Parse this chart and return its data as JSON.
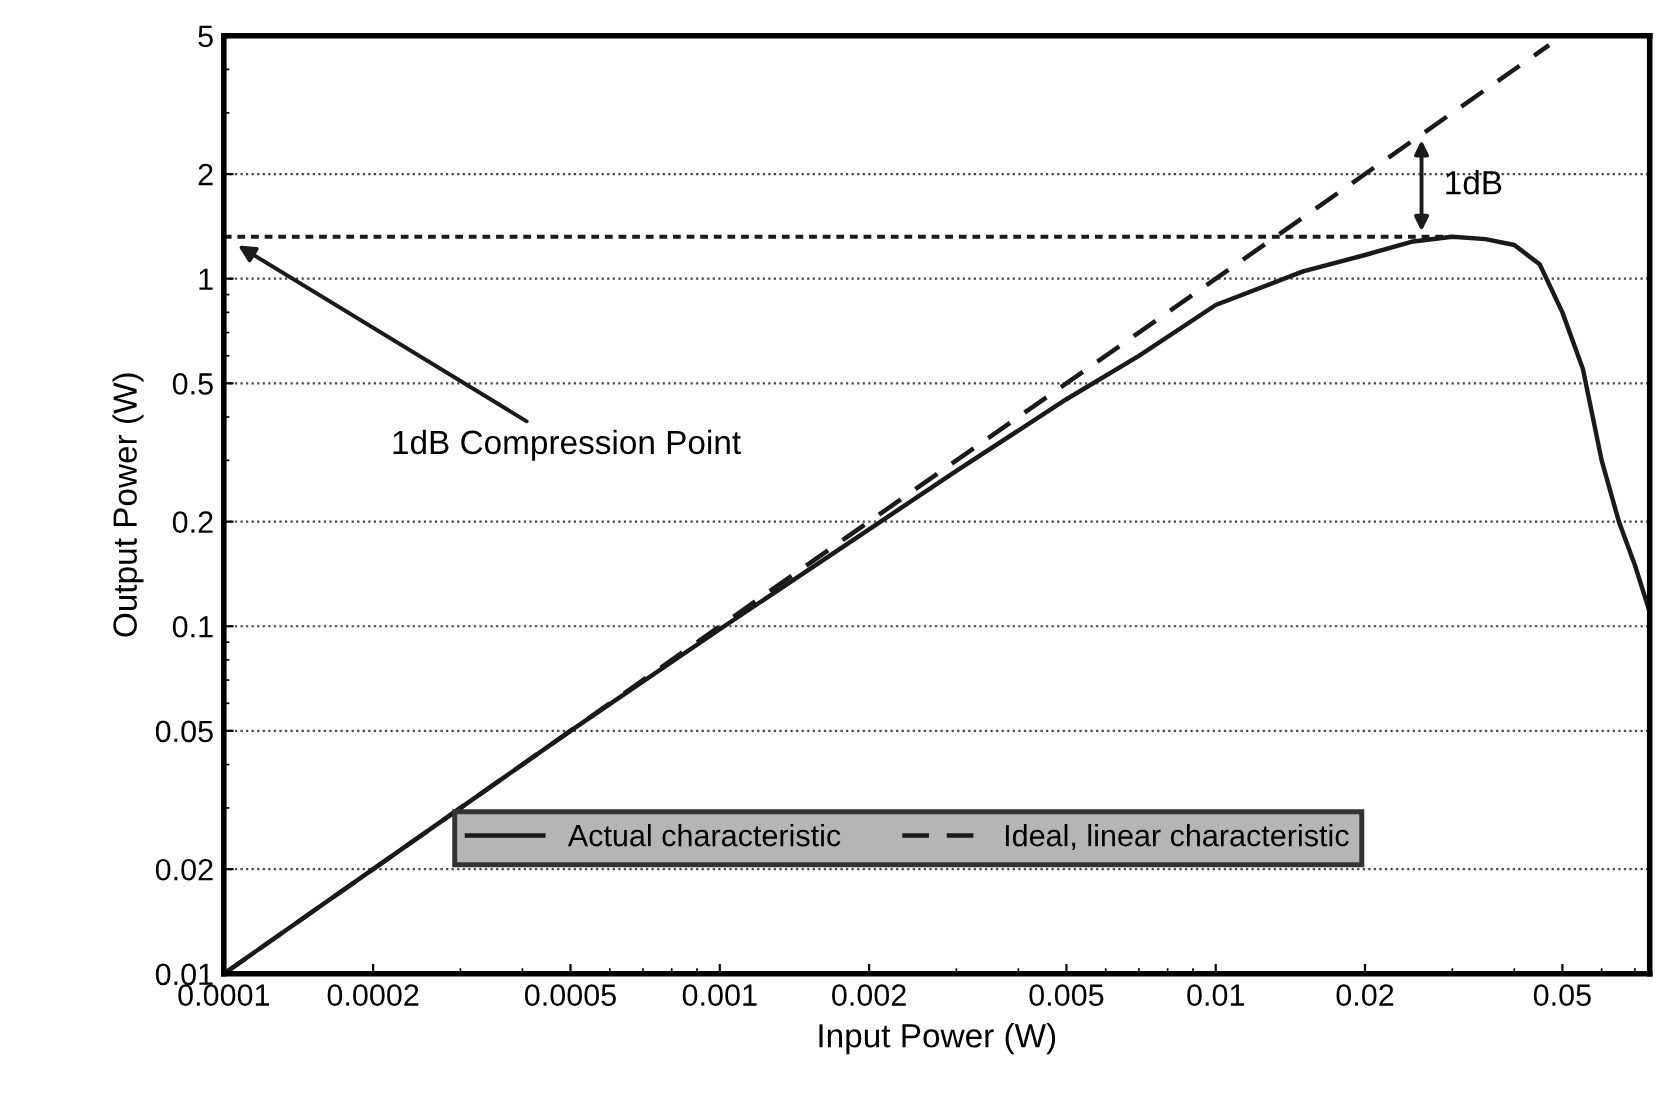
{
  "chart_data": {
    "type": "line",
    "xlabel": "Input Power (W)",
    "ylabel": "Output Power (W)",
    "log": "xy",
    "grid": "y",
    "legend": "bottom",
    "xlim": [
      0.0001,
      0.075
    ],
    "ylim": [
      0.01,
      5
    ],
    "xticks": [
      0.0001,
      0.0002,
      0.0005,
      0.001,
      0.002,
      0.005,
      0.01,
      0.02,
      0.05
    ],
    "yticks": [
      0.01,
      0.02,
      0.05,
      0.1,
      0.2,
      0.5,
      1,
      2,
      5
    ],
    "series": [
      {
        "name": "Actual characteristic",
        "color": "#1a1a1a",
        "line_style": "solid",
        "x": [
          0.0001,
          0.0002,
          0.0005,
          0.001,
          0.002,
          0.003,
          0.005,
          0.007,
          0.01,
          0.015,
          0.02,
          0.025,
          0.03,
          0.035,
          0.04,
          0.045,
          0.05,
          0.055,
          0.06,
          0.065,
          0.07,
          0.075
        ],
        "values": [
          0.01,
          0.02,
          0.05,
          0.098,
          0.19,
          0.28,
          0.45,
          0.6,
          0.84,
          1.05,
          1.17,
          1.28,
          1.32,
          1.3,
          1.25,
          1.1,
          0.8,
          0.55,
          0.3,
          0.2,
          0.15,
          0.11
        ]
      },
      {
        "name": "Ideal, linear characteristic",
        "color": "#1a1a1a",
        "line_style": "dashed",
        "x": [
          0.0001,
          0.047
        ],
        "values": [
          0.01,
          4.7
        ]
      }
    ],
    "ref_lines": [
      {
        "axis": "y",
        "value": 1.32,
        "line_style": "dotted",
        "color": "#1a1a1a"
      }
    ],
    "annotations": [
      "1dB Compression Point",
      {
        "text": "1dB",
        "x": 0.026,
        "y": 2.6
      }
    ]
  }
}
